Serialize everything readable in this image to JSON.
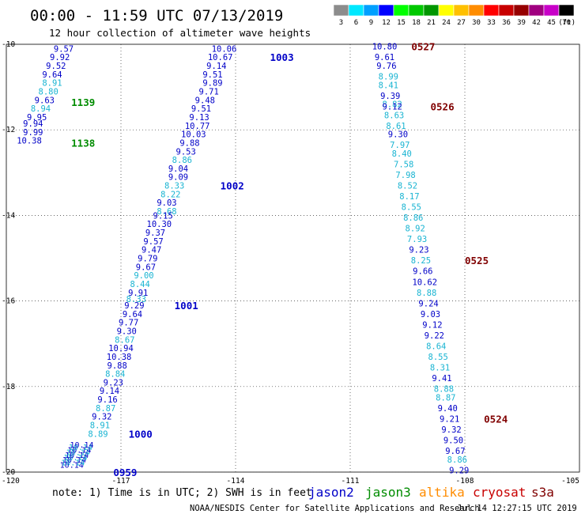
{
  "header": {
    "title": "00:00 - 11:59 UTC 07/13/2019",
    "subtitle": "12 hour collection of altimeter wave heights"
  },
  "legend": {
    "bins": [
      {
        "label": "3",
        "color": "#8c8c8c"
      },
      {
        "label": "6",
        "color": "#00e8ff"
      },
      {
        "label": "9",
        "color": "#00a0ff"
      },
      {
        "label": "12",
        "color": "#0000ff"
      },
      {
        "label": "15",
        "color": "#00ff00"
      },
      {
        "label": "18",
        "color": "#00c800"
      },
      {
        "label": "21",
        "color": "#009600"
      },
      {
        "label": "24",
        "color": "#ffff00"
      },
      {
        "label": "27",
        "color": "#ffc000"
      },
      {
        "label": "30",
        "color": "#ff8c00"
      },
      {
        "label": "33",
        "color": "#ff0000"
      },
      {
        "label": "36",
        "color": "#c80000"
      },
      {
        "label": "39",
        "color": "#960000"
      },
      {
        "label": "42",
        "color": "#a00080"
      },
      {
        "label": "45",
        "color": "#c800c8"
      },
      {
        "label": "70",
        "color": "#000000"
      }
    ],
    "unit": "(ft)"
  },
  "footer": {
    "note": "note: 1) Time is in UTC; 2) SWH is in feet",
    "satellites": [
      {
        "name": "jason2",
        "color": "#0000c8"
      },
      {
        "name": "jason3",
        "color": "#008c00"
      },
      {
        "name": "altika",
        "color": "#ff8c00"
      },
      {
        "name": "cryosat",
        "color": "#c80000"
      },
      {
        "name": "s3a",
        "color": "#800000"
      }
    ],
    "credit": "NOAA/NESDIS Center for Satellite Applications and Research",
    "timestamp": "Jul 14 12:27:15 UTC 2019"
  },
  "chart_data": {
    "type": "scatter",
    "xlim": [
      -120,
      -105
    ],
    "ylim": [
      -20,
      -10
    ],
    "x_ticks": [
      -120,
      -117,
      -114,
      -111,
      -108,
      -105
    ],
    "y_ticks": [
      -10,
      -12,
      -14,
      -16,
      -18,
      -20
    ],
    "x_tick_labels": [
      "-120",
      "-117",
      "-114",
      "-111",
      "-108",
      "-105"
    ],
    "y_tick_labels": [
      "-10",
      "-12",
      "-14",
      "-16",
      "-18",
      "-20"
    ],
    "grid": true,
    "colors": {
      "dark": "#0000c8",
      "light": "#19b4d2"
    },
    "tracks": [
      {
        "name": "jason3",
        "label_color": "#008c00",
        "points": [
          {
            "lon": -118.5,
            "lat": -10.1,
            "v": "9.57",
            "c": "dark"
          },
          {
            "lon": -118.6,
            "lat": -10.3,
            "v": "9.92",
            "c": "dark"
          },
          {
            "lon": -118.7,
            "lat": -10.5,
            "v": "9.52",
            "c": "dark"
          },
          {
            "lon": -118.8,
            "lat": -10.7,
            "v": "9.64",
            "c": "dark"
          },
          {
            "lon": -118.8,
            "lat": -10.9,
            "v": "8.91",
            "c": "light"
          },
          {
            "lon": -118.9,
            "lat": -11.1,
            "v": "8.80",
            "c": "light"
          },
          {
            "lon": -119.0,
            "lat": -11.3,
            "v": "9.63",
            "c": "dark"
          },
          {
            "lon": -119.1,
            "lat": -11.5,
            "v": "8.94",
            "c": "light"
          },
          {
            "lon": -119.2,
            "lat": -11.7,
            "v": "9.95",
            "c": "dark"
          },
          {
            "lon": -119.3,
            "lat": -11.85,
            "v": "9.94",
            "c": "dark"
          },
          {
            "lon": -119.3,
            "lat": -12.05,
            "v": "9.99",
            "c": "dark"
          },
          {
            "lon": -119.4,
            "lat": -12.25,
            "v": "10.38",
            "c": "dark"
          }
        ],
        "time_labels": [
          {
            "text": "1139",
            "lon": -118.3,
            "lat": -11.35
          },
          {
            "text": "1138",
            "lon": -118.3,
            "lat": -12.3
          }
        ]
      },
      {
        "name": "jason2",
        "label_color": "#0000c8",
        "points": [
          {
            "lon": -114.3,
            "lat": -10.1,
            "v": "10.06",
            "c": "dark"
          },
          {
            "lon": -114.4,
            "lat": -10.3,
            "v": "10.67",
            "c": "dark"
          },
          {
            "lon": -114.5,
            "lat": -10.5,
            "v": "9.14",
            "c": "dark"
          },
          {
            "lon": -114.6,
            "lat": -10.7,
            "v": "9.51",
            "c": "dark"
          },
          {
            "lon": -114.6,
            "lat": -10.9,
            "v": "9.89",
            "c": "dark"
          },
          {
            "lon": -114.7,
            "lat": -11.1,
            "v": "9.71",
            "c": "dark"
          },
          {
            "lon": -114.8,
            "lat": -11.3,
            "v": "9.48",
            "c": "dark"
          },
          {
            "lon": -114.9,
            "lat": -11.5,
            "v": "9.51",
            "c": "dark"
          },
          {
            "lon": -114.95,
            "lat": -11.7,
            "v": "9.13",
            "c": "dark"
          },
          {
            "lon": -115.0,
            "lat": -11.9,
            "v": "10.77",
            "c": "dark"
          },
          {
            "lon": -115.1,
            "lat": -12.1,
            "v": "10.03",
            "c": "dark"
          },
          {
            "lon": -115.2,
            "lat": -12.3,
            "v": "9.88",
            "c": "dark"
          },
          {
            "lon": -115.3,
            "lat": -12.5,
            "v": "9.53",
            "c": "dark"
          },
          {
            "lon": -115.4,
            "lat": -12.7,
            "v": "8.86",
            "c": "light"
          },
          {
            "lon": -115.5,
            "lat": -12.9,
            "v": "9.04",
            "c": "dark"
          },
          {
            "lon": -115.5,
            "lat": -13.1,
            "v": "9.09",
            "c": "dark"
          },
          {
            "lon": -115.6,
            "lat": -13.3,
            "v": "8.33",
            "c": "light"
          },
          {
            "lon": -115.7,
            "lat": -13.5,
            "v": "8.22",
            "c": "light"
          },
          {
            "lon": -115.8,
            "lat": -13.7,
            "v": "9.03",
            "c": "dark"
          },
          {
            "lon": -115.8,
            "lat": -13.9,
            "v": "8.68",
            "c": "light"
          },
          {
            "lon": -115.9,
            "lat": -14.0,
            "v": "9.15",
            "c": "dark"
          },
          {
            "lon": -116.0,
            "lat": -14.2,
            "v": "10.30",
            "c": "dark"
          },
          {
            "lon": -116.1,
            "lat": -14.4,
            "v": "9.37",
            "c": "dark"
          },
          {
            "lon": -116.15,
            "lat": -14.6,
            "v": "9.57",
            "c": "dark"
          },
          {
            "lon": -116.2,
            "lat": -14.8,
            "v": "9.47",
            "c": "dark"
          },
          {
            "lon": -116.3,
            "lat": -15.0,
            "v": "9.79",
            "c": "dark"
          },
          {
            "lon": -116.35,
            "lat": -15.2,
            "v": "9.67",
            "c": "dark"
          },
          {
            "lon": -116.4,
            "lat": -15.4,
            "v": "9.00",
            "c": "light"
          },
          {
            "lon": -116.5,
            "lat": -15.6,
            "v": "8.44",
            "c": "light"
          },
          {
            "lon": -116.55,
            "lat": -15.8,
            "v": "9.91",
            "c": "dark"
          },
          {
            "lon": -116.6,
            "lat": -15.95,
            "v": "8.33",
            "c": "light"
          },
          {
            "lon": -116.65,
            "lat": -16.1,
            "v": "9.29",
            "c": "dark"
          },
          {
            "lon": -116.7,
            "lat": -16.3,
            "v": "9.64",
            "c": "dark"
          },
          {
            "lon": -116.8,
            "lat": -16.5,
            "v": "9.77",
            "c": "dark"
          },
          {
            "lon": -116.85,
            "lat": -16.7,
            "v": "9.30",
            "c": "dark"
          },
          {
            "lon": -116.9,
            "lat": -16.9,
            "v": "8.67",
            "c": "light"
          },
          {
            "lon": -117.0,
            "lat": -17.1,
            "v": "10.94",
            "c": "dark"
          },
          {
            "lon": -117.05,
            "lat": -17.3,
            "v": "10.38",
            "c": "dark"
          },
          {
            "lon": -117.1,
            "lat": -17.5,
            "v": "9.88",
            "c": "dark"
          },
          {
            "lon": -117.15,
            "lat": -17.7,
            "v": "8.84",
            "c": "light"
          },
          {
            "lon": -117.2,
            "lat": -17.9,
            "v": "9.23",
            "c": "dark"
          },
          {
            "lon": -117.3,
            "lat": -18.1,
            "v": "9.14",
            "c": "dark"
          },
          {
            "lon": -117.35,
            "lat": -18.3,
            "v": "9.16",
            "c": "dark"
          },
          {
            "lon": -117.4,
            "lat": -18.5,
            "v": "8.87",
            "c": "light"
          },
          {
            "lon": -117.5,
            "lat": -18.7,
            "v": "9.32",
            "c": "dark"
          },
          {
            "lon": -117.55,
            "lat": -18.9,
            "v": "8.91",
            "c": "light"
          },
          {
            "lon": -117.6,
            "lat": -19.1,
            "v": "8.89",
            "c": "light"
          }
        ],
        "time_labels": [
          {
            "text": "1003",
            "lon": -113.1,
            "lat": -10.3
          },
          {
            "text": "1002",
            "lon": -114.4,
            "lat": -13.3
          },
          {
            "text": "1001",
            "lon": -115.6,
            "lat": -16.1
          },
          {
            "text": "1000",
            "lon": -116.8,
            "lat": -19.1
          },
          {
            "text": "0959",
            "lon": -117.2,
            "lat": -20.0
          }
        ],
        "overlap_cluster": {
          "text": "10.14",
          "lon": -118.6,
          "lat": -19.9
        }
      },
      {
        "name": "cryosat",
        "label_color": "#800000",
        "points": [
          {
            "lon": -110.1,
            "lat": -10.05,
            "v": "10.80",
            "c": "dark"
          },
          {
            "lon": -110.1,
            "lat": -10.3,
            "v": "9.61",
            "c": "dark"
          },
          {
            "lon": -110.05,
            "lat": -10.5,
            "v": "9.76",
            "c": "dark"
          },
          {
            "lon": -110.0,
            "lat": -10.75,
            "v": "8.99",
            "c": "light"
          },
          {
            "lon": -110.0,
            "lat": -10.95,
            "v": "8.41",
            "c": "light"
          },
          {
            "lon": -109.95,
            "lat": -11.2,
            "v": "9.39",
            "c": "dark"
          },
          {
            "lon": -109.9,
            "lat": -11.4,
            "v": "8.82",
            "c": "light"
          },
          {
            "lon": -109.9,
            "lat": -11.45,
            "v": "9.12",
            "c": "dark"
          },
          {
            "lon": -109.85,
            "lat": -11.65,
            "v": "8.63",
            "c": "light"
          },
          {
            "lon": -109.8,
            "lat": -11.9,
            "v": "8.61",
            "c": "light"
          },
          {
            "lon": -109.75,
            "lat": -12.1,
            "v": "9.30",
            "c": "dark"
          },
          {
            "lon": -109.7,
            "lat": -12.35,
            "v": "7.97",
            "c": "light"
          },
          {
            "lon": -109.65,
            "lat": -12.55,
            "v": "8.40",
            "c": "light"
          },
          {
            "lon": -109.6,
            "lat": -12.8,
            "v": "7.58",
            "c": "light"
          },
          {
            "lon": -109.55,
            "lat": -13.05,
            "v": "7.98",
            "c": "light"
          },
          {
            "lon": -109.5,
            "lat": -13.3,
            "v": "8.52",
            "c": "light"
          },
          {
            "lon": -109.45,
            "lat": -13.55,
            "v": "8.17",
            "c": "light"
          },
          {
            "lon": -109.4,
            "lat": -13.8,
            "v": "8.55",
            "c": "light"
          },
          {
            "lon": -109.35,
            "lat": -14.05,
            "v": "8.86",
            "c": "light"
          },
          {
            "lon": -109.3,
            "lat": -14.3,
            "v": "8.92",
            "c": "light"
          },
          {
            "lon": -109.25,
            "lat": -14.55,
            "v": "7.93",
            "c": "light"
          },
          {
            "lon": -109.2,
            "lat": -14.8,
            "v": "9.23",
            "c": "dark"
          },
          {
            "lon": -109.15,
            "lat": -15.05,
            "v": "8.25",
            "c": "light"
          },
          {
            "lon": -109.1,
            "lat": -15.3,
            "v": "9.66",
            "c": "dark"
          },
          {
            "lon": -109.05,
            "lat": -15.55,
            "v": "10.62",
            "c": "dark"
          },
          {
            "lon": -109.0,
            "lat": -15.8,
            "v": "8.88",
            "c": "light"
          },
          {
            "lon": -108.95,
            "lat": -16.05,
            "v": "9.24",
            "c": "dark"
          },
          {
            "lon": -108.9,
            "lat": -16.3,
            "v": "9.03",
            "c": "dark"
          },
          {
            "lon": -108.85,
            "lat": -16.55,
            "v": "9.12",
            "c": "dark"
          },
          {
            "lon": -108.8,
            "lat": -16.8,
            "v": "9.22",
            "c": "dark"
          },
          {
            "lon": -108.75,
            "lat": -17.05,
            "v": "8.64",
            "c": "light"
          },
          {
            "lon": -108.7,
            "lat": -17.3,
            "v": "8.55",
            "c": "light"
          },
          {
            "lon": -108.65,
            "lat": -17.55,
            "v": "8.31",
            "c": "light"
          },
          {
            "lon": -108.6,
            "lat": -17.8,
            "v": "9.41",
            "c": "dark"
          },
          {
            "lon": -108.55,
            "lat": -18.05,
            "v": "8.88",
            "c": "light"
          },
          {
            "lon": -108.5,
            "lat": -18.25,
            "v": "8.87",
            "c": "light"
          },
          {
            "lon": -108.45,
            "lat": -18.5,
            "v": "9.40",
            "c": "dark"
          },
          {
            "lon": -108.4,
            "lat": -18.75,
            "v": "9.21",
            "c": "dark"
          },
          {
            "lon": -108.35,
            "lat": -19.0,
            "v": "9.32",
            "c": "dark"
          },
          {
            "lon": -108.3,
            "lat": -19.25,
            "v": "9.50",
            "c": "dark"
          },
          {
            "lon": -108.25,
            "lat": -19.5,
            "v": "9.67",
            "c": "dark"
          },
          {
            "lon": -108.2,
            "lat": -19.7,
            "v": "8.86",
            "c": "light"
          },
          {
            "lon": -108.15,
            "lat": -19.95,
            "v": "9.29",
            "c": "dark"
          }
        ],
        "time_labels": [
          {
            "text": "0527",
            "lon": -109.4,
            "lat": -10.05
          },
          {
            "text": "0526",
            "lon": -108.9,
            "lat": -11.45
          },
          {
            "text": "0525",
            "lon": -108.0,
            "lat": -15.05
          },
          {
            "text": "0524",
            "lon": -107.5,
            "lat": -18.75
          }
        ]
      }
    ]
  }
}
